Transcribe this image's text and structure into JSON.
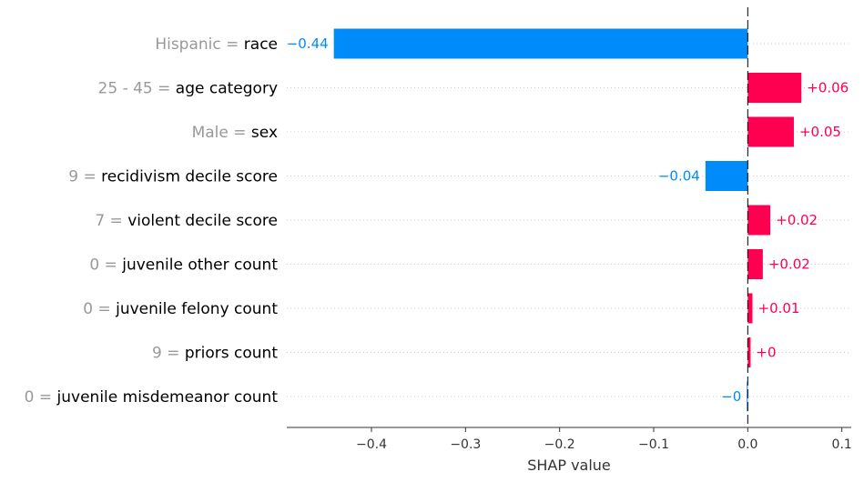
{
  "chart_data": {
    "type": "bar",
    "orientation": "horizontal",
    "xlabel": "SHAP value",
    "xlim": [
      -0.49,
      0.11
    ],
    "xticks": [
      {
        "value": -0.4,
        "label": "−0.4"
      },
      {
        "value": -0.3,
        "label": "−0.3"
      },
      {
        "value": -0.2,
        "label": "−0.2"
      },
      {
        "value": -0.1,
        "label": "−0.1"
      },
      {
        "value": 0.0,
        "label": "0.0"
      },
      {
        "value": 0.1,
        "label": "0.1"
      }
    ],
    "grid": "dotted-horizontal",
    "colors": {
      "positive": "#ff0051",
      "negative": "#008bfb",
      "feature_value": "#999999",
      "feature_name": "#000000"
    },
    "bars": [
      {
        "feature_value": "Hispanic",
        "feature": "race",
        "value": -0.44,
        "label": "−0.44"
      },
      {
        "feature_value": "25 - 45",
        "feature": "age category",
        "value": 0.057,
        "label": "+0.06"
      },
      {
        "feature_value": "Male",
        "feature": "sex",
        "value": 0.049,
        "label": "+0.05"
      },
      {
        "feature_value": "9",
        "feature": "recidivism decile score",
        "value": -0.045,
        "label": "−0.04"
      },
      {
        "feature_value": "7",
        "feature": "violent decile score",
        "value": 0.024,
        "label": "+0.02"
      },
      {
        "feature_value": "0",
        "feature": "juvenile other count",
        "value": 0.016,
        "label": "+0.02"
      },
      {
        "feature_value": "0",
        "feature": "juvenile felony count",
        "value": 0.005,
        "label": "+0.01"
      },
      {
        "feature_value": "9",
        "feature": "priors count",
        "value": 0.003,
        "label": "+0"
      },
      {
        "feature_value": "0",
        "feature": "juvenile misdemeanor count",
        "value": -0.001,
        "label": "−0"
      }
    ]
  }
}
